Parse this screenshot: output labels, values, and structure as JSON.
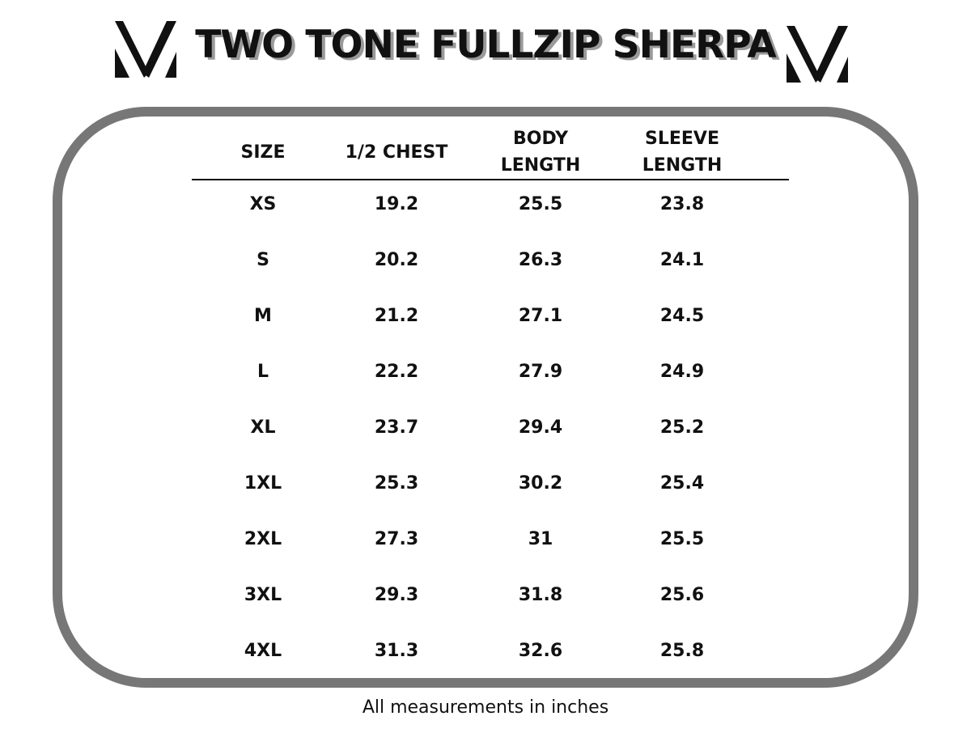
{
  "header": {
    "title": "TWO TONE FULLZIP SHERPA"
  },
  "table": {
    "columns": [
      "SIZE",
      "1/2 CHEST",
      "BODY LENGTH",
      "SLEEVE LENGTH"
    ],
    "rows": [
      [
        "XS",
        "19.2",
        "25.5",
        "23.8"
      ],
      [
        "S",
        "20.2",
        "26.3",
        "24.1"
      ],
      [
        "M",
        "21.2",
        "27.1",
        "24.5"
      ],
      [
        "L",
        "22.2",
        "27.9",
        "24.9"
      ],
      [
        "XL",
        "23.7",
        "29.4",
        "25.2"
      ],
      [
        "1XL",
        "25.3",
        "30.2",
        "25.4"
      ],
      [
        "2XL",
        "27.3",
        "31",
        "25.5"
      ],
      [
        "3XL",
        "29.3",
        "31.8",
        "25.6"
      ],
      [
        "4XL",
        "31.3",
        "32.6",
        "25.8"
      ]
    ]
  },
  "footer": {
    "note": "All measurements in inches"
  }
}
